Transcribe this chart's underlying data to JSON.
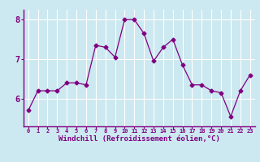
{
  "x": [
    0,
    1,
    2,
    3,
    4,
    5,
    6,
    7,
    8,
    9,
    10,
    11,
    12,
    13,
    14,
    15,
    16,
    17,
    18,
    19,
    20,
    21,
    22,
    23
  ],
  "y": [
    5.7,
    6.2,
    6.2,
    6.2,
    6.4,
    6.4,
    6.35,
    7.35,
    7.3,
    7.05,
    8.0,
    8.0,
    7.65,
    6.95,
    7.3,
    7.5,
    6.85,
    6.35,
    6.35,
    6.2,
    6.15,
    5.55,
    6.2,
    6.6
  ],
  "line_color": "#800080",
  "marker": "D",
  "markersize": 2.5,
  "linewidth": 0.9,
  "xlabel": "Windchill (Refroidissement éolien,°C)",
  "xlabel_fontsize": 6.5,
  "xlim": [
    -0.5,
    23.5
  ],
  "ylim": [
    5.3,
    8.25
  ],
  "yticks": [
    6,
    7,
    8
  ],
  "ytick_labels": [
    "6",
    "7",
    "8"
  ],
  "xticks": [
    0,
    1,
    2,
    3,
    4,
    5,
    6,
    7,
    8,
    9,
    10,
    11,
    12,
    13,
    14,
    15,
    16,
    17,
    18,
    19,
    20,
    21,
    22,
    23
  ],
  "background_color": "#cce8f0",
  "grid_color": "#ffffff",
  "axis_color": "#800080",
  "tick_label_color": "#800080",
  "figsize": [
    3.2,
    2.0
  ],
  "dpi": 100
}
